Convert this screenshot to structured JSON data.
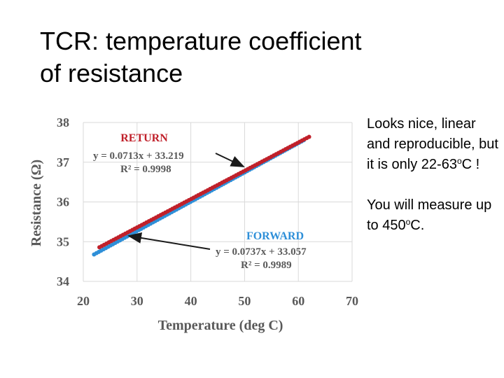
{
  "slide": {
    "title_line1": "TCR: temperature coefficient",
    "title_line2": "of resistance",
    "notes": {
      "p1_text": "Looks nice, linear and reproducible, but it is only 22-63",
      "p1_sup": "o",
      "p1_end": "C !",
      "p2_text": "You will measure up to 450",
      "p2_sup": "o",
      "p2_end": "C."
    }
  },
  "chart_data": {
    "type": "scatter",
    "xlabel": "Temperature (deg C)",
    "ylabel": "Resistance (Ω)",
    "xlim": [
      20,
      70
    ],
    "ylim": [
      34,
      38
    ],
    "xticks": [
      "20",
      "30",
      "40",
      "50",
      "60",
      "70"
    ],
    "yticks": [
      "34",
      "35",
      "36",
      "37",
      "38"
    ],
    "grid": true,
    "series": [
      {
        "name": "RETURN",
        "color": "#c0202a",
        "slope": 0.0713,
        "intercept": 33.219,
        "x_range": [
          23,
          62
        ],
        "equation": "y = 0.0713x + 33.219",
        "r2": "R² = 0.9998"
      },
      {
        "name": "FORWARD",
        "color": "#2e8fd8",
        "slope": 0.0737,
        "intercept": 33.057,
        "x_range": [
          22,
          61
        ],
        "equation": "y = 0.0737x + 33.057",
        "r2": "R² = 0.9989"
      }
    ]
  }
}
